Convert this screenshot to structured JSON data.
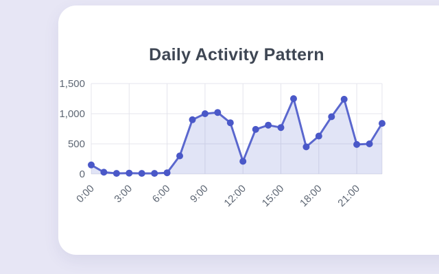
{
  "card": {
    "title": "Daily Activity Pattern"
  },
  "chart_data": {
    "type": "line",
    "title": "Daily Activity Pattern",
    "x": [
      "0:00",
      "1:00",
      "2:00",
      "3:00",
      "4:00",
      "5:00",
      "6:00",
      "7:00",
      "8:00",
      "9:00",
      "10:00",
      "11:00",
      "12:00",
      "13:00",
      "14:00",
      "15:00",
      "16:00",
      "17:00",
      "18:00",
      "19:00",
      "20:00",
      "21:00",
      "22:00",
      "23:00"
    ],
    "values": [
      150,
      30,
      10,
      15,
      10,
      10,
      20,
      300,
      900,
      1000,
      1020,
      850,
      210,
      740,
      810,
      770,
      1250,
      450,
      630,
      950,
      1240,
      490,
      500,
      840
    ],
    "x_label_every": 3,
    "x_tick_labels_shown": [
      "0:00",
      "3:00",
      "6:00",
      "9:00",
      "12:00",
      "15:00",
      "18:00",
      "21:00"
    ],
    "xlabel": "",
    "ylabel": "",
    "ylim": [
      0,
      1500
    ],
    "yticks": [
      0,
      500,
      1000,
      1500
    ],
    "ytick_labels": [
      "0",
      "500",
      "1,000",
      "1,500"
    ],
    "grid": true,
    "legend": false,
    "area_fill": true,
    "point_style": "circle",
    "colors": {
      "line": "#5a67ce",
      "point": "#4a58c8",
      "area": "rgba(90,103,206,0.18)",
      "grid": "#e4e4ec",
      "tick_text": "#5d6673",
      "background": "#e7e6f5",
      "card": "#ffffff",
      "title_text": "#3e4653"
    }
  }
}
